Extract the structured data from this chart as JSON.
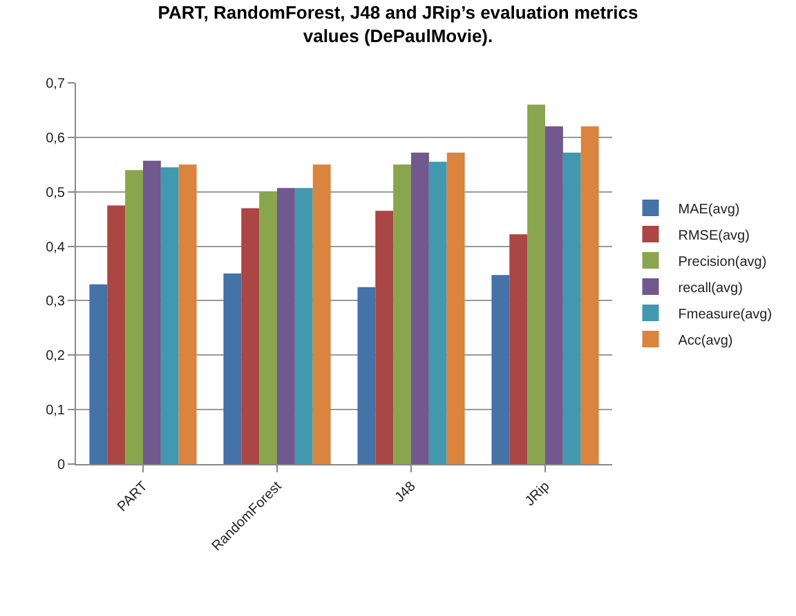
{
  "chart_data": {
    "type": "bar",
    "title": "PART, RandomForest, J48 and JRip’s evaluation metrics values (DePaulMovie).",
    "categories": [
      "PART",
      "RandomForest",
      "J48",
      "JRip"
    ],
    "series": [
      {
        "name": "MAE(avg)",
        "color": "#4572a7",
        "values": [
          0.33,
          0.35,
          0.325,
          0.347
        ]
      },
      {
        "name": "RMSE(avg)",
        "color": "#aa4643",
        "values": [
          0.475,
          0.47,
          0.465,
          0.422
        ]
      },
      {
        "name": "Precision(avg)",
        "color": "#89a54e",
        "values": [
          0.54,
          0.5,
          0.55,
          0.66
        ]
      },
      {
        "name": "recall(avg)",
        "color": "#71588f",
        "values": [
          0.557,
          0.507,
          0.572,
          0.62
        ]
      },
      {
        "name": "Fmeasure(avg)",
        "color": "#4198af",
        "values": [
          0.545,
          0.507,
          0.555,
          0.572
        ]
      },
      {
        "name": "Acc(avg)",
        "color": "#db843d",
        "values": [
          0.55,
          0.55,
          0.572,
          0.62
        ]
      }
    ],
    "ylim": [
      0,
      0.7
    ],
    "yticks": [
      0,
      {
        "value": 0.1,
        "label": "0,1"
      },
      {
        "value": 0.2,
        "label": "0,2"
      },
      {
        "value": 0.3,
        "label": "0,3"
      },
      {
        "value": 0.4,
        "label": "0,4"
      },
      {
        "value": 0.5,
        "label": "0,5"
      },
      {
        "value": 0.6,
        "label": "0,6"
      },
      {
        "value": 0.7,
        "label": "0,7"
      }
    ],
    "grid": "y",
    "legend": "right"
  }
}
